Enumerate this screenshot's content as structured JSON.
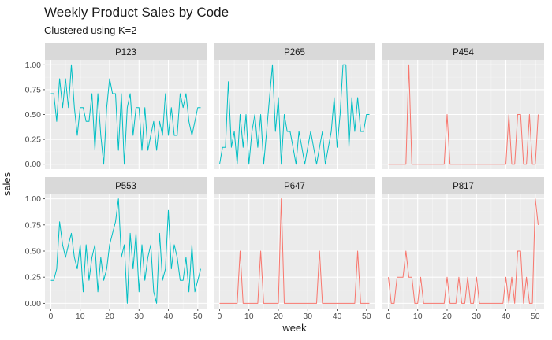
{
  "chart_data": {
    "type": "line",
    "title": "Weekly Product Sales by Code",
    "subtitle": "Clustered using K=2",
    "xlabel": "week",
    "ylabel": "sales",
    "xlim": [
      -2,
      53
    ],
    "ylim": [
      -0.05,
      1.05
    ],
    "x_ticks": [
      0,
      10,
      20,
      30,
      40,
      50
    ],
    "y_ticks": [
      0.0,
      0.25,
      0.5,
      0.75,
      1.0
    ],
    "y_tick_labels": [
      "0.00",
      "0.25",
      "0.50",
      "0.75",
      "1.00"
    ],
    "cluster_colors": {
      "1": "#F8766D",
      "2": "#00BFC4"
    },
    "panel_background": "#EBEBEB",
    "strip_background": "#D9D9D9",
    "grid": true,
    "legend": "none",
    "facets": [
      {
        "code": "P123",
        "cluster": 2,
        "x": [
          0,
          1,
          2,
          3,
          4,
          5,
          6,
          7,
          8,
          9,
          10,
          11,
          12,
          13,
          14,
          15,
          16,
          17,
          18,
          19,
          20,
          21,
          22,
          23,
          24,
          25,
          26,
          27,
          28,
          29,
          30,
          31,
          32,
          33,
          34,
          35,
          36,
          37,
          38,
          39,
          40,
          41,
          42,
          43,
          44,
          45,
          46,
          47,
          48,
          49,
          50,
          51
        ],
        "values": [
          0.71,
          0.71,
          0.43,
          0.86,
          0.57,
          0.86,
          0.57,
          1.0,
          0.57,
          0.29,
          0.57,
          0.57,
          0.43,
          0.43,
          0.71,
          0.14,
          0.71,
          0.29,
          0.0,
          0.57,
          0.86,
          0.71,
          0.71,
          0.14,
          0.71,
          0.0,
          0.57,
          0.71,
          0.29,
          0.57,
          0.57,
          0.14,
          0.57,
          0.14,
          0.29,
          0.43,
          0.14,
          0.43,
          0.29,
          0.71,
          0.29,
          0.57,
          0.29,
          0.29,
          0.71,
          0.57,
          0.71,
          0.43,
          0.29,
          0.43,
          0.57,
          0.57
        ]
      },
      {
        "code": "P265",
        "cluster": 2,
        "x": [
          0,
          1,
          2,
          3,
          4,
          5,
          6,
          7,
          8,
          9,
          10,
          11,
          12,
          13,
          14,
          15,
          16,
          17,
          18,
          19,
          20,
          21,
          22,
          23,
          24,
          25,
          26,
          27,
          28,
          29,
          30,
          31,
          32,
          33,
          34,
          35,
          36,
          37,
          38,
          39,
          40,
          41,
          42,
          43,
          44,
          45,
          46,
          47,
          48,
          49,
          50,
          51
        ],
        "values": [
          0.0,
          0.17,
          0.17,
          0.83,
          0.17,
          0.33,
          0.0,
          0.5,
          0.17,
          0.5,
          0.0,
          0.33,
          0.5,
          0.17,
          0.5,
          0.0,
          0.33,
          0.67,
          1.0,
          0.33,
          0.67,
          0.0,
          0.5,
          0.33,
          0.33,
          0.17,
          0.0,
          0.33,
          0.17,
          0.0,
          0.17,
          0.33,
          0.17,
          0.0,
          0.17,
          0.33,
          0.0,
          0.17,
          0.33,
          0.67,
          0.17,
          0.5,
          1.0,
          1.0,
          0.17,
          0.67,
          0.33,
          0.67,
          0.33,
          0.33,
          0.5,
          0.5
        ]
      },
      {
        "code": "P454",
        "cluster": 1,
        "x": [
          0,
          1,
          2,
          3,
          4,
          5,
          6,
          7,
          8,
          9,
          10,
          11,
          12,
          13,
          14,
          15,
          16,
          17,
          18,
          19,
          20,
          21,
          22,
          23,
          24,
          25,
          26,
          27,
          28,
          29,
          30,
          31,
          32,
          33,
          34,
          35,
          36,
          37,
          38,
          39,
          40,
          41,
          42,
          43,
          44,
          45,
          46,
          47,
          48,
          49,
          50,
          51
        ],
        "values": [
          0,
          0,
          0,
          0,
          0,
          0,
          0,
          1.0,
          0,
          0,
          0,
          0,
          0,
          0,
          0,
          0,
          0,
          0,
          0,
          0,
          0.5,
          0,
          0,
          0,
          0,
          0,
          0,
          0,
          0,
          0,
          0,
          0,
          0,
          0,
          0,
          0,
          0,
          0,
          0,
          0,
          0,
          0.5,
          0,
          0,
          0.5,
          0.5,
          0,
          0,
          0.5,
          0,
          0,
          0.5
        ]
      },
      {
        "code": "P553",
        "cluster": 2,
        "x": [
          0,
          1,
          2,
          3,
          4,
          5,
          6,
          7,
          8,
          9,
          10,
          11,
          12,
          13,
          14,
          15,
          16,
          17,
          18,
          19,
          20,
          21,
          22,
          23,
          24,
          25,
          26,
          27,
          28,
          29,
          30,
          31,
          32,
          33,
          34,
          35,
          36,
          37,
          38,
          39,
          40,
          41,
          42,
          43,
          44,
          45,
          46,
          47,
          48,
          49,
          50,
          51
        ],
        "values": [
          0.22,
          0.22,
          0.33,
          0.78,
          0.56,
          0.44,
          0.56,
          0.67,
          0.44,
          0.33,
          0.56,
          0.11,
          0.56,
          0.22,
          0.44,
          0.56,
          0.11,
          0.44,
          0.22,
          0.33,
          0.56,
          0.67,
          0.78,
          1.0,
          0.44,
          0.56,
          0.0,
          0.67,
          0.33,
          0.67,
          0.11,
          0.56,
          0.22,
          0.44,
          0.56,
          0.11,
          0.0,
          0.67,
          0.22,
          0.33,
          0.89,
          0.33,
          0.56,
          0.44,
          0.22,
          0.22,
          0.44,
          0.11,
          0.56,
          0.11,
          0.22,
          0.33
        ]
      },
      {
        "code": "P647",
        "cluster": 1,
        "x": [
          0,
          1,
          2,
          3,
          4,
          5,
          6,
          7,
          8,
          9,
          10,
          11,
          12,
          13,
          14,
          15,
          16,
          17,
          18,
          19,
          20,
          21,
          22,
          23,
          24,
          25,
          26,
          27,
          28,
          29,
          30,
          31,
          32,
          33,
          34,
          35,
          36,
          37,
          38,
          39,
          40,
          41,
          42,
          43,
          44,
          45,
          46,
          47,
          48,
          49,
          50,
          51
        ],
        "values": [
          0,
          0,
          0,
          0,
          0,
          0,
          0,
          0.5,
          0,
          0,
          0,
          0,
          0,
          0,
          0.5,
          0,
          0,
          0,
          0,
          0,
          0,
          1.0,
          0,
          0,
          0,
          0,
          0,
          0,
          0,
          0,
          0,
          0,
          0,
          0,
          0.5,
          0,
          0,
          0,
          0,
          0,
          0,
          0,
          0,
          0,
          0,
          0,
          0,
          0.5,
          0,
          0,
          0,
          0
        ]
      },
      {
        "code": "P817",
        "cluster": 1,
        "x": [
          0,
          1,
          2,
          3,
          4,
          5,
          6,
          7,
          8,
          9,
          10,
          11,
          12,
          13,
          14,
          15,
          16,
          17,
          18,
          19,
          20,
          21,
          22,
          23,
          24,
          25,
          26,
          27,
          28,
          29,
          30,
          31,
          32,
          33,
          34,
          35,
          36,
          37,
          38,
          39,
          40,
          41,
          42,
          43,
          44,
          45,
          46,
          47,
          48,
          49,
          50,
          51
        ],
        "values": [
          0.25,
          0,
          0,
          0.25,
          0.25,
          0.25,
          0.5,
          0.25,
          0.25,
          0,
          0,
          0.25,
          0,
          0,
          0,
          0,
          0,
          0,
          0,
          0,
          0.25,
          0,
          0,
          0,
          0.25,
          0,
          0,
          0.25,
          0,
          0,
          0.25,
          0,
          0,
          0,
          0,
          0,
          0,
          0,
          0,
          0,
          0.25,
          0,
          0.25,
          0,
          0.5,
          0.5,
          0,
          0.25,
          0,
          0,
          1.0,
          0.75
        ]
      }
    ]
  }
}
